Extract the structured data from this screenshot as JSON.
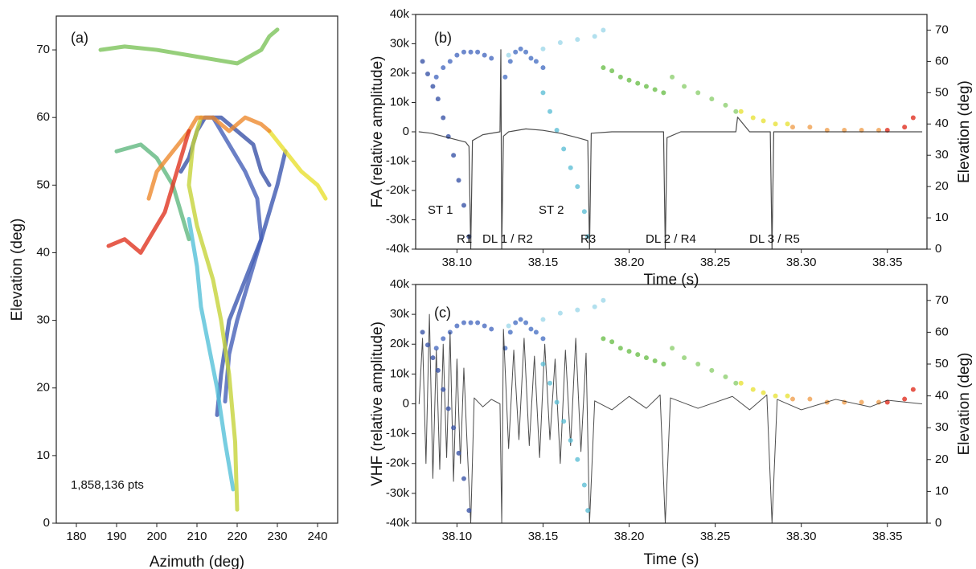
{
  "chart_data": [
    {
      "type": "line",
      "xlabel": "Azimuth (deg)",
      "ylabel": "Elevation (deg)",
      "xlim": [
        175,
        245
      ],
      "xticks": [
        180,
        190,
        200,
        210,
        220,
        230,
        240
      ],
      "ylim": [
        0,
        75
      ],
      "yticks": [
        0,
        10,
        20,
        30,
        40,
        50,
        60,
        70
      ],
      "grid": false,
      "annotations": [
        "(a)",
        "1,858,136 pts"
      ],
      "series": [
        {
          "color": "#3c58b0",
          "x": [
            215,
            216,
            218,
            222,
            226,
            228,
            230,
            232
          ],
          "values": [
            16,
            22,
            30,
            36,
            42,
            46,
            50,
            55
          ]
        },
        {
          "color": "#4660b8",
          "x": [
            217,
            218,
            220,
            222,
            224,
            226,
            225,
            222,
            218,
            214
          ],
          "values": [
            18,
            25,
            30,
            34,
            38,
            42,
            48,
            52,
            56,
            60
          ]
        },
        {
          "color": "#3a52a8",
          "x": [
            206,
            208,
            210,
            212,
            216,
            220,
            224,
            226,
            228
          ],
          "values": [
            52,
            54,
            58,
            60,
            60,
            58,
            56,
            52,
            50
          ]
        },
        {
          "color": "#55c0d8",
          "x": [
            219,
            217,
            215,
            213,
            211,
            210,
            208
          ],
          "values": [
            5,
            12,
            20,
            26,
            32,
            38,
            45
          ]
        },
        {
          "color": "#7cc35a",
          "x": [
            186,
            192,
            200,
            210,
            220,
            226,
            228,
            230
          ],
          "values": [
            70,
            70.5,
            70,
            69,
            68,
            70,
            72,
            73
          ]
        },
        {
          "color": "#60b880",
          "x": [
            190,
            196,
            200,
            204,
            206,
            208
          ],
          "values": [
            55,
            56,
            54,
            50,
            46,
            42
          ]
        },
        {
          "color": "#c6d33a",
          "x": [
            220,
            219.5,
            218,
            216,
            214,
            212,
            210,
            208,
            209,
            211
          ],
          "values": [
            2,
            12,
            22,
            30,
            36,
            40,
            44,
            50,
            56,
            60
          ]
        },
        {
          "color": "#e8e030",
          "x": [
            228,
            232,
            236,
            240,
            242
          ],
          "values": [
            58,
            55,
            52,
            50,
            48
          ]
        },
        {
          "color": "#ee8a2e",
          "x": [
            198,
            200,
            204,
            208,
            210,
            214,
            218,
            222,
            226,
            228
          ],
          "values": [
            48,
            52,
            55,
            58,
            60,
            60,
            58,
            60,
            59,
            58
          ]
        },
        {
          "color": "#e03520",
          "x": [
            188,
            192,
            196,
            200,
            202,
            204,
            206,
            208
          ],
          "values": [
            41,
            42,
            40,
            44,
            46,
            50,
            54,
            58
          ]
        }
      ]
    },
    {
      "type": "line",
      "xlabel": "Time (s)",
      "ylabel": "FA (relative amplitude)",
      "y2label": "Elevation (deg)",
      "xlim": [
        38.076,
        38.373
      ],
      "xticks": [
        {
          "value": 38.1,
          "label": "38.10"
        },
        38.15,
        {
          "value": 38.2,
          "label": "38.20"
        },
        38.25,
        {
          "value": 38.3,
          "label": "38.30"
        },
        38.35
      ],
      "ylim": [
        -40000,
        40000
      ],
      "yticks": [
        {
          "value": -40000,
          "label": "-40k"
        },
        {
          "value": -30000,
          "label": "-30k"
        },
        {
          "value": -20000,
          "label": "-20k"
        },
        {
          "value": -10000,
          "label": "-10k"
        },
        0,
        {
          "value": 10000,
          "label": "10k"
        },
        {
          "value": 20000,
          "label": "20k"
        },
        {
          "value": 30000,
          "label": "30k"
        },
        {
          "value": 40000,
          "label": "40k"
        }
      ],
      "y2lim": [
        0,
        75
      ],
      "y2ticks": [
        0,
        10,
        20,
        30,
        40,
        50,
        60,
        70
      ],
      "grid": false,
      "annotations": [
        "(b)",
        "ST 1",
        "R1",
        "DL 1 / R2",
        "ST 2",
        "R3",
        "DL 2 / R4",
        "DL 3 / R5"
      ],
      "series": [
        {
          "type": "scatter",
          "axis": "y2",
          "color": "#9fd8ea",
          "x": [
            38.13,
            38.15,
            38.16,
            38.17,
            38.18,
            38.185
          ],
          "values": [
            62,
            64,
            66,
            67,
            68,
            70
          ]
        },
        {
          "type": "scatter",
          "axis": "y2",
          "color": "#3b55a8",
          "x": [
            38.08,
            38.083,
            38.086,
            38.089,
            38.092,
            38.095,
            38.098,
            38.101,
            38.104,
            38.107
          ],
          "values": [
            60,
            56,
            52,
            48,
            42,
            36,
            30,
            22,
            14,
            4
          ]
        },
        {
          "type": "scatter",
          "axis": "y2",
          "color": "#4a6cc0",
          "x": [
            38.088,
            38.092,
            38.096,
            38.1,
            38.104,
            38.108,
            38.112,
            38.116,
            38.12
          ],
          "values": [
            55,
            58,
            60,
            62,
            63,
            63,
            63,
            62,
            61
          ]
        },
        {
          "type": "scatter",
          "axis": "y2",
          "color": "#4a72c4",
          "x": [
            38.128,
            38.131,
            38.134,
            38.137,
            38.14,
            38.143,
            38.146,
            38.15
          ],
          "values": [
            55,
            60,
            63,
            64,
            63,
            61,
            60,
            58
          ]
        },
        {
          "type": "scatter",
          "axis": "y2",
          "color": "#5fbfd6",
          "x": [
            38.15,
            38.154,
            38.158,
            38.162,
            38.166,
            38.17,
            38.174,
            38.176
          ],
          "values": [
            50,
            44,
            38,
            32,
            26,
            20,
            12,
            4
          ]
        },
        {
          "type": "scatter",
          "axis": "y2",
          "color": "#6dbf4c",
          "x": [
            38.185,
            38.19,
            38.195,
            38.2,
            38.205,
            38.21,
            38.215,
            38.22
          ],
          "values": [
            58,
            57,
            55,
            54,
            53,
            52,
            51,
            50
          ]
        },
        {
          "type": "scatter",
          "axis": "y2",
          "color": "#8fd070",
          "x": [
            38.225,
            38.232,
            38.24,
            38.248,
            38.256,
            38.262
          ],
          "values": [
            55,
            52,
            50,
            48,
            46,
            44
          ]
        },
        {
          "type": "scatter",
          "axis": "y2",
          "color": "#e8e23a",
          "x": [
            38.265,
            38.272,
            38.278,
            38.285,
            38.292
          ],
          "values": [
            44,
            42,
            41,
            40,
            40
          ]
        },
        {
          "type": "scatter",
          "axis": "y2",
          "color": "#f0a050",
          "x": [
            38.295,
            38.305,
            38.315,
            38.325,
            38.335,
            38.345
          ],
          "values": [
            39,
            39,
            38,
            38,
            38,
            38
          ]
        },
        {
          "type": "scatter",
          "axis": "y2",
          "color": "#e03020",
          "x": [
            38.35,
            38.36,
            38.365
          ],
          "values": [
            38,
            39,
            42
          ]
        },
        {
          "type": "line",
          "color": "#111111",
          "x": [
            38.078,
            38.085,
            38.095,
            38.105,
            38.107,
            38.108,
            38.109,
            38.115,
            38.125,
            38.1255,
            38.126,
            38.127,
            38.13,
            38.14,
            38.15,
            38.16,
            38.17,
            38.176,
            38.177,
            38.178,
            38.19,
            38.2,
            38.215,
            38.22,
            38.221,
            38.222,
            38.23,
            38.25,
            38.262,
            38.263,
            38.27,
            38.282,
            38.283,
            38.284,
            38.3,
            38.33,
            38.37
          ],
          "values": [
            0,
            -500,
            -2000,
            -3500,
            -5000,
            -40000,
            -3000,
            -1000,
            0,
            28000,
            -40000,
            -1500,
            0,
            1000,
            500,
            -500,
            -2000,
            -3000,
            -40000,
            -500,
            0,
            0,
            0,
            0,
            -40000,
            -2000,
            0,
            0,
            0,
            5000,
            0,
            0,
            -40000,
            0,
            0,
            0,
            0
          ]
        }
      ]
    },
    {
      "type": "line",
      "xlabel": "Time (s)",
      "ylabel": "VHF (relative amplitude)",
      "y2label": "Elevation (deg)",
      "xlim": [
        38.076,
        38.373
      ],
      "xticks": [
        {
          "value": 38.1,
          "label": "38.10"
        },
        38.15,
        {
          "value": 38.2,
          "label": "38.20"
        },
        38.25,
        {
          "value": 38.3,
          "label": "38.30"
        },
        38.35
      ],
      "ylim": [
        -40000,
        40000
      ],
      "yticks": [
        {
          "value": -40000,
          "label": "-40k"
        },
        {
          "value": -30000,
          "label": "-30k"
        },
        {
          "value": -20000,
          "label": "-20k"
        },
        {
          "value": -10000,
          "label": "-10k"
        },
        0,
        {
          "value": 10000,
          "label": "10k"
        },
        {
          "value": 20000,
          "label": "20k"
        },
        {
          "value": 30000,
          "label": "30k"
        },
        {
          "value": 40000,
          "label": "40k"
        }
      ],
      "y2lim": [
        0,
        75
      ],
      "y2ticks": [
        0,
        10,
        20,
        30,
        40,
        50,
        60,
        70
      ],
      "grid": false,
      "annotations": [
        "(c)"
      ],
      "series": [
        {
          "type": "scatter",
          "axis": "y2",
          "color": "#9fd8ea",
          "x": [
            38.13,
            38.15,
            38.16,
            38.17,
            38.18,
            38.185
          ],
          "values": [
            62,
            64,
            66,
            67,
            68,
            70
          ]
        },
        {
          "type": "scatter",
          "axis": "y2",
          "color": "#4a6cc0",
          "x": [
            38.088,
            38.092,
            38.096,
            38.1,
            38.104,
            38.108,
            38.112,
            38.116,
            38.12
          ],
          "values": [
            55,
            58,
            60,
            62,
            63,
            63,
            63,
            62,
            61
          ]
        },
        {
          "type": "scatter",
          "axis": "y2",
          "color": "#4a72c4",
          "x": [
            38.128,
            38.131,
            38.134,
            38.137,
            38.14,
            38.143,
            38.146,
            38.15
          ],
          "values": [
            55,
            60,
            63,
            64,
            63,
            61,
            60,
            58
          ]
        },
        {
          "type": "scatter",
          "axis": "y2",
          "color": "#6dbf4c",
          "x": [
            38.185,
            38.19,
            38.195,
            38.2,
            38.205,
            38.21,
            38.215,
            38.22
          ],
          "values": [
            58,
            57,
            55,
            54,
            53,
            52,
            51,
            50
          ]
        },
        {
          "type": "scatter",
          "axis": "y2",
          "color": "#8fd070",
          "x": [
            38.225,
            38.232,
            38.24,
            38.248,
            38.256,
            38.262
          ],
          "values": [
            55,
            52,
            50,
            48,
            46,
            44
          ]
        },
        {
          "type": "scatter",
          "axis": "y2",
          "color": "#e8e23a",
          "x": [
            38.265,
            38.272,
            38.278,
            38.285,
            38.292
          ],
          "values": [
            44,
            42,
            41,
            40,
            40
          ]
        },
        {
          "type": "scatter",
          "axis": "y2",
          "color": "#f0a050",
          "x": [
            38.295,
            38.305,
            38.315,
            38.325,
            38.335,
            38.345
          ],
          "values": [
            39,
            39,
            38,
            38,
            38,
            38
          ]
        },
        {
          "type": "scatter",
          "axis": "y2",
          "color": "#e03020",
          "x": [
            38.35,
            38.36,
            38.365
          ],
          "values": [
            38,
            39,
            42
          ]
        },
        {
          "type": "line",
          "color": "#111111",
          "x": [
            38.078,
            38.08,
            38.082,
            38.084,
            38.086,
            38.088,
            38.09,
            38.092,
            38.094,
            38.096,
            38.098,
            38.1,
            38.102,
            38.104,
            38.106,
            38.108,
            38.11,
            38.115,
            38.12,
            38.125,
            38.126,
            38.127,
            38.13,
            38.133,
            38.136,
            38.139,
            38.142,
            38.145,
            38.148,
            38.151,
            38.154,
            38.157,
            38.16,
            38.163,
            38.166,
            38.169,
            38.172,
            38.175,
            38.177,
            38.18,
            38.19,
            38.2,
            38.21,
            38.218,
            38.221,
            38.224,
            38.24,
            38.26,
            38.27,
            38.28,
            38.283,
            38.286,
            38.3,
            38.32,
            38.34,
            38.35,
            38.37
          ],
          "values": [
            0,
            22000,
            -20000,
            30000,
            -25000,
            18000,
            -22000,
            20000,
            -18000,
            24000,
            -26000,
            15000,
            -20000,
            12000,
            -15000,
            -40000,
            2000,
            -1000,
            1500,
            0,
            -40000,
            25000,
            -15000,
            18000,
            -12000,
            22000,
            -14000,
            16000,
            -18000,
            20000,
            -12000,
            15000,
            -20000,
            18000,
            -14000,
            22000,
            -16000,
            17000,
            -40000,
            1000,
            -2000,
            2500,
            -1500,
            3000,
            -40000,
            2000,
            -1500,
            2500,
            -2000,
            3000,
            -40000,
            1500,
            -2000,
            1500,
            -1000,
            1200,
            0
          ]
        },
        {
          "type": "scatter",
          "axis": "y2",
          "color": "#3b55a8",
          "x": [
            38.08,
            38.083,
            38.086,
            38.089,
            38.092,
            38.095,
            38.098,
            38.101,
            38.104,
            38.107
          ],
          "values": [
            60,
            56,
            52,
            48,
            42,
            36,
            30,
            22,
            14,
            4
          ]
        },
        {
          "type": "scatter",
          "axis": "y2",
          "color": "#5fbfd6",
          "x": [
            38.15,
            38.154,
            38.158,
            38.162,
            38.166,
            38.17,
            38.174,
            38.176
          ],
          "values": [
            50,
            44,
            38,
            32,
            26,
            20,
            12,
            4
          ]
        }
      ]
    }
  ]
}
